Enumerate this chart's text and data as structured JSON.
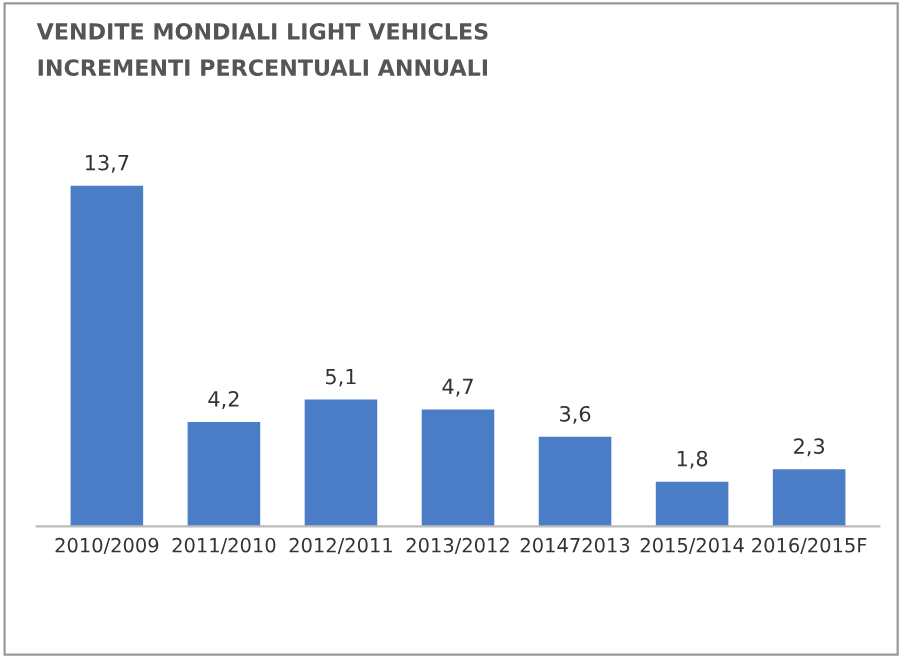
{
  "chart_data": {
    "type": "bar",
    "title": "VENDITE MONDIALI LIGHT VEHICLES",
    "subtitle": "INCREMENTI PERCENTUALI ANNUALI",
    "categories": [
      "2010/2009",
      "2011/2010",
      "2012/2011",
      "2013/2012",
      "201472013",
      "2015/2014",
      "2016/2015F"
    ],
    "values": [
      13.7,
      4.2,
      5.1,
      4.7,
      3.6,
      1.8,
      2.3
    ],
    "value_labels": [
      "13,7",
      "4,2",
      "5,1",
      "4,7",
      "3,6",
      "1,8",
      "2,3"
    ],
    "color": "#4a7dc6",
    "grid": false,
    "legend": false
  }
}
